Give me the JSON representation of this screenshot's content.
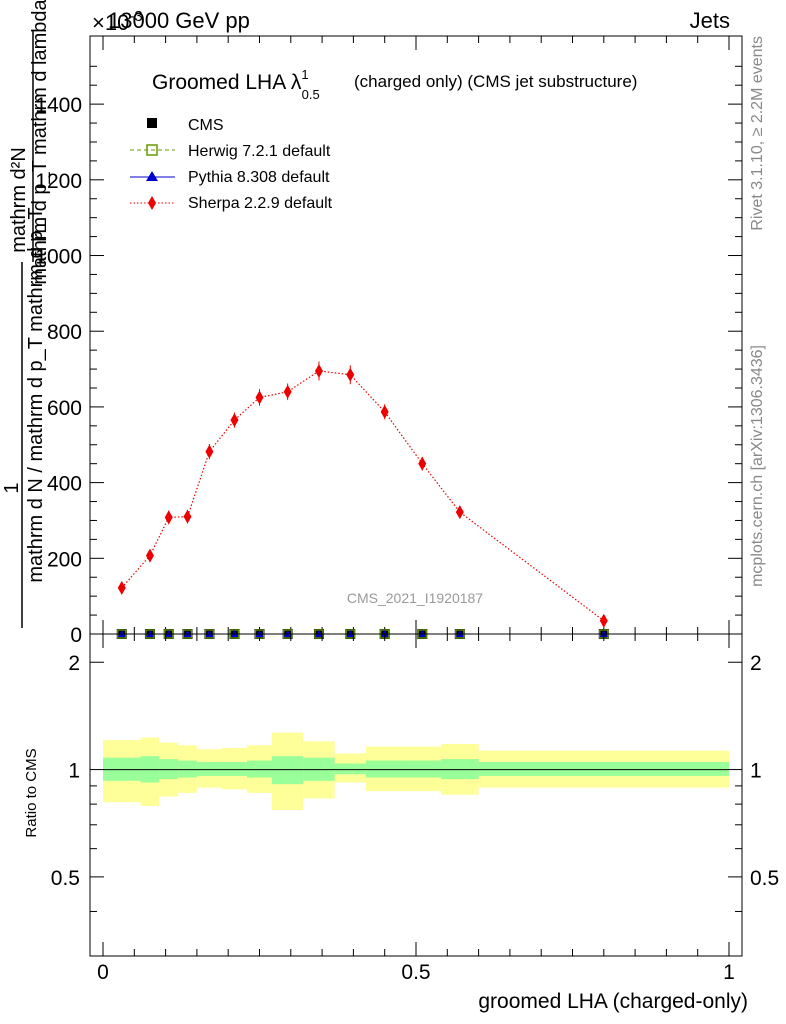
{
  "header": {
    "energy": "13000 GeV pp",
    "process": "Jets",
    "exponent": "×10",
    "exponent_power": "-3"
  },
  "side_labels": {
    "rivet": "Rivet 3.1.10, ≥ 2.2M events",
    "mcplots": "mcplots.cern.ch [arXiv:1306.3436]"
  },
  "plot_title": {
    "main": "Groomed LHA λ",
    "sup": "1",
    "sub": "0.5",
    "suffix": "(charged only) (CMS jet substructure)"
  },
  "analysis_id": "CMS_2021_I1920187",
  "y_label": {
    "numerator_top": "mathrm d²N",
    "denominator_top": "mathrm d p_T mathrm d lambda",
    "one": "1",
    "denominator_bottom": "mathrm d N / mathrm d p_T mathrm d p_T"
  },
  "legend": [
    {
      "label": "CMS",
      "color": "#000000"
    },
    {
      "label": "Herwig 7.2.1 default",
      "color": "#669900"
    },
    {
      "label": "Pythia 8.308 default",
      "color": "#0000cc"
    },
    {
      "label": "Sherpa 2.2.9 default",
      "color": "#ee0000"
    }
  ],
  "chart_data": [
    {
      "type": "line",
      "panel": "main",
      "x": [
        0.03,
        0.075,
        0.105,
        0.135,
        0.17,
        0.21,
        0.25,
        0.295,
        0.345,
        0.395,
        0.45,
        0.51,
        0.57,
        0.8
      ],
      "xlim": [
        -0.02,
        1.0
      ],
      "ylim": [
        0,
        1580
      ],
      "y_ticks": [
        0,
        200,
        400,
        600,
        800,
        1000,
        1200,
        1400
      ],
      "x_ticks": [
        "0",
        "0.5",
        "1"
      ],
      "series": [
        {
          "name": "CMS",
          "values": [
            0,
            0,
            0,
            0,
            0,
            0,
            0,
            0,
            0,
            0,
            0,
            0,
            0,
            0
          ]
        },
        {
          "name": "Herwig 7.2.1 default",
          "values": [
            0,
            0,
            0,
            0,
            0,
            0,
            0,
            0,
            0,
            0,
            0,
            0,
            0,
            0
          ]
        },
        {
          "name": "Pythia 8.308 default",
          "values": [
            0,
            0,
            0,
            0,
            0,
            0,
            0,
            0,
            0,
            0,
            0,
            0,
            0,
            0
          ]
        },
        {
          "name": "Sherpa 2.2.9 default",
          "values": [
            122,
            207,
            308,
            310,
            482,
            565,
            625,
            640,
            695,
            685,
            587,
            450,
            322,
            35
          ],
          "errors": [
            12,
            16,
            18,
            18,
            20,
            20,
            22,
            22,
            25,
            25,
            20,
            18,
            16,
            12
          ]
        }
      ]
    },
    {
      "type": "area",
      "panel": "ratio",
      "ylabel": "Ratio to CMS",
      "xlabel": "groomed LHA (charged-only)",
      "ylim": [
        0.3,
        2.4
      ],
      "y_scale": "log",
      "y_ticks": [
        "0.5",
        "1",
        "2"
      ],
      "reference": 1,
      "bins": [
        {
          "x": [
            0.0,
            0.06
          ],
          "inner": [
            0.93,
            1.08
          ],
          "outer": [
            0.81,
            1.21
          ]
        },
        {
          "x": [
            0.06,
            0.09
          ],
          "inner": [
            0.92,
            1.09
          ],
          "outer": [
            0.79,
            1.23
          ]
        },
        {
          "x": [
            0.09,
            0.12
          ],
          "inner": [
            0.94,
            1.07
          ],
          "outer": [
            0.84,
            1.19
          ]
        },
        {
          "x": [
            0.12,
            0.15
          ],
          "inner": [
            0.95,
            1.06
          ],
          "outer": [
            0.86,
            1.17
          ]
        },
        {
          "x": [
            0.15,
            0.19
          ],
          "inner": [
            0.96,
            1.05
          ],
          "outer": [
            0.89,
            1.14
          ]
        },
        {
          "x": [
            0.19,
            0.23
          ],
          "inner": [
            0.96,
            1.05
          ],
          "outer": [
            0.88,
            1.15
          ]
        },
        {
          "x": [
            0.23,
            0.27
          ],
          "inner": [
            0.95,
            1.06
          ],
          "outer": [
            0.86,
            1.17
          ]
        },
        {
          "x": [
            0.27,
            0.32
          ],
          "inner": [
            0.91,
            1.09
          ],
          "outer": [
            0.77,
            1.27
          ]
        },
        {
          "x": [
            0.32,
            0.37
          ],
          "inner": [
            0.93,
            1.08
          ],
          "outer": [
            0.83,
            1.2
          ]
        },
        {
          "x": [
            0.37,
            0.42
          ],
          "inner": [
            0.97,
            1.04
          ],
          "outer": [
            0.92,
            1.11
          ]
        },
        {
          "x": [
            0.42,
            0.48
          ],
          "inner": [
            0.95,
            1.06
          ],
          "outer": [
            0.87,
            1.16
          ]
        },
        {
          "x": [
            0.48,
            0.54
          ],
          "inner": [
            0.95,
            1.06
          ],
          "outer": [
            0.87,
            1.16
          ]
        },
        {
          "x": [
            0.54,
            0.6
          ],
          "inner": [
            0.94,
            1.07
          ],
          "outer": [
            0.85,
            1.18
          ]
        },
        {
          "x": [
            0.6,
            1.0
          ],
          "inner": [
            0.96,
            1.05
          ],
          "outer": [
            0.89,
            1.13
          ]
        }
      ],
      "colors": {
        "inner": "#99ff99",
        "outer": "#ffff99"
      }
    }
  ]
}
